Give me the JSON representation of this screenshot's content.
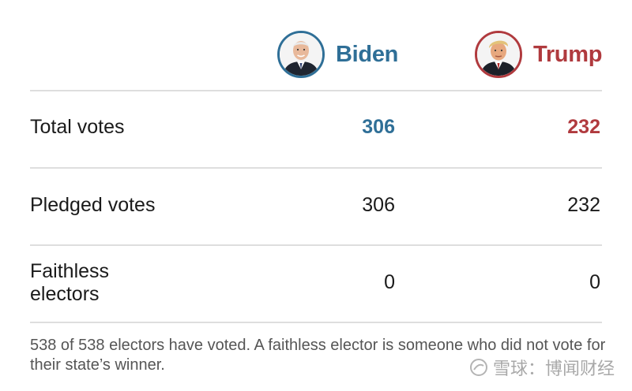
{
  "candidates": {
    "biden": {
      "name": "Biden",
      "color": "#2f6f97",
      "avatar_icon": "biden-portrait"
    },
    "trump": {
      "name": "Trump",
      "color": "#b03a3e",
      "avatar_icon": "trump-portrait"
    }
  },
  "rows": [
    {
      "label": "Total votes",
      "biden": "306",
      "trump": "232"
    },
    {
      "label": "Pledged votes",
      "biden": "306",
      "trump": "232"
    },
    {
      "label_line1": "Faithless",
      "label_line2": "electors",
      "biden": "0",
      "trump": "0"
    }
  ],
  "footnote": "538 of 538 electors have voted. A faithless elector is someone who did not vote for their state’s winner.",
  "watermark": "雪球：博闻财经"
}
